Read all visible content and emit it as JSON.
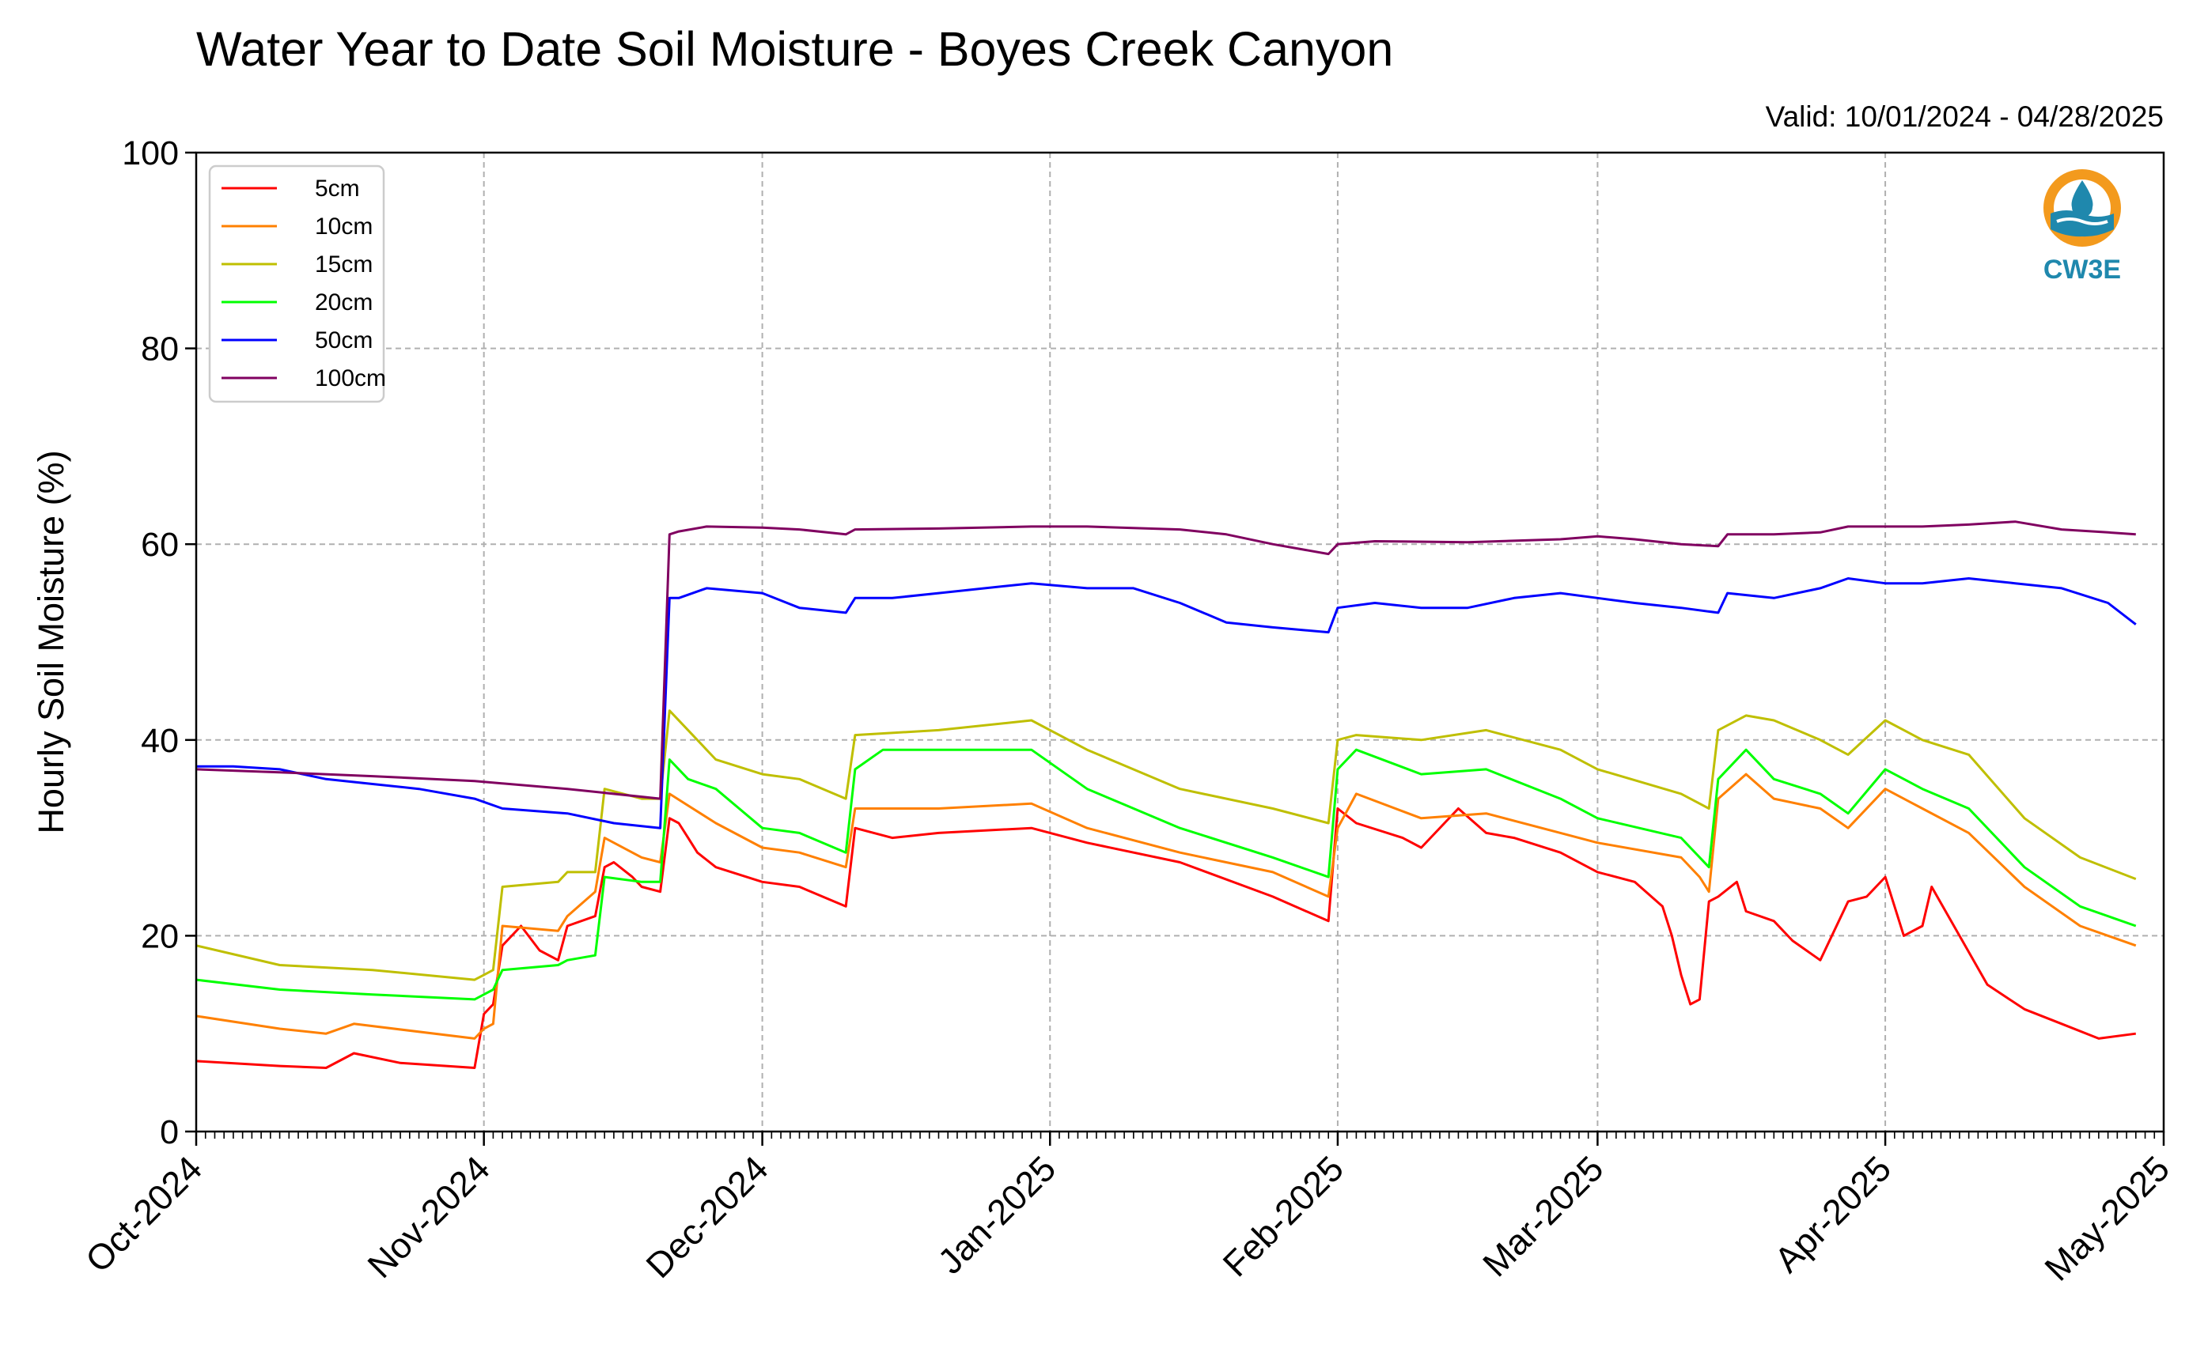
{
  "chart_data": {
    "type": "line",
    "title": "Water Year to Date Soil Moisture - Boyes Creek Canyon",
    "subtitle": "Valid: 10/01/2024 - 04/28/2025",
    "xlabel": "",
    "ylabel": "Hourly Soil Moisture (%)",
    "ylim": [
      0,
      100
    ],
    "yticks": [
      0,
      20,
      40,
      60,
      80,
      100
    ],
    "xlim": [
      "2024-10-01",
      "2025-05-01"
    ],
    "xticks": [
      {
        "date": "2024-10-01",
        "label": "Oct-2024"
      },
      {
        "date": "2024-11-01",
        "label": "Nov-2024"
      },
      {
        "date": "2024-12-01",
        "label": "Dec-2024"
      },
      {
        "date": "2025-01-01",
        "label": "Jan-2025"
      },
      {
        "date": "2025-02-01",
        "label": "Feb-2025"
      },
      {
        "date": "2025-03-01",
        "label": "Mar-2025"
      },
      {
        "date": "2025-04-01",
        "label": "Apr-2025"
      },
      {
        "date": "2025-05-01",
        "label": "May-2025"
      }
    ],
    "grid": true,
    "legend_position": "top-left",
    "logo_text": "CW3E",
    "series": [
      {
        "name": "5cm",
        "color": "#ff0000",
        "x": [
          "2024-10-01",
          "2024-10-10",
          "2024-10-15",
          "2024-10-18",
          "2024-10-23",
          "2024-10-31",
          "2024-11-01",
          "2024-11-02",
          "2024-11-03",
          "2024-11-05",
          "2024-11-07",
          "2024-11-09",
          "2024-11-10",
          "2024-11-13",
          "2024-11-14",
          "2024-11-15",
          "2024-11-17",
          "2024-11-18",
          "2024-11-20",
          "2024-11-21",
          "2024-11-22",
          "2024-11-23",
          "2024-11-24",
          "2024-11-26",
          "2024-12-01",
          "2024-12-05",
          "2024-12-10",
          "2024-12-11",
          "2024-12-15",
          "2024-12-20",
          "2024-12-30",
          "2025-01-05",
          "2025-01-15",
          "2025-01-25",
          "2025-01-31",
          "2025-02-01",
          "2025-02-03",
          "2025-02-08",
          "2025-02-10",
          "2025-02-14",
          "2025-02-17",
          "2025-02-20",
          "2025-02-25",
          "2025-03-01",
          "2025-03-05",
          "2025-03-08",
          "2025-03-09",
          "2025-03-10",
          "2025-03-11",
          "2025-03-12",
          "2025-03-13",
          "2025-03-14",
          "2025-03-16",
          "2025-03-17",
          "2025-03-20",
          "2025-03-22",
          "2025-03-25",
          "2025-03-28",
          "2025-03-30",
          "2025-04-01",
          "2025-04-03",
          "2025-04-05",
          "2025-04-06",
          "2025-04-09",
          "2025-04-12",
          "2025-04-16",
          "2025-04-20",
          "2025-04-24",
          "2025-04-28"
        ],
        "values": [
          7.2,
          6.7,
          6.5,
          8.0,
          7.0,
          6.5,
          12.0,
          13.0,
          19.0,
          21.0,
          18.5,
          17.5,
          21.0,
          22.0,
          27.0,
          27.5,
          26.0,
          25.0,
          24.5,
          32.0,
          31.5,
          30.0,
          28.5,
          27.0,
          25.5,
          25.0,
          23.0,
          31.0,
          30.0,
          30.5,
          31.0,
          29.5,
          27.5,
          24.0,
          21.5,
          33.0,
          31.5,
          30.0,
          29.0,
          33.0,
          30.5,
          30.0,
          28.5,
          26.5,
          25.5,
          23.0,
          20.0,
          16.0,
          13.0,
          13.5,
          23.5,
          24.0,
          25.5,
          22.5,
          21.5,
          19.5,
          17.5,
          23.5,
          24.0,
          26.0,
          20.0,
          21.0,
          25.0,
          20.0,
          15.0,
          12.5,
          11.0,
          9.5,
          10.0
        ]
      },
      {
        "name": "10cm",
        "color": "#ff8000",
        "x": [
          "2024-10-01",
          "2024-10-10",
          "2024-10-15",
          "2024-10-18",
          "2024-10-31",
          "2024-11-01",
          "2024-11-02",
          "2024-11-03",
          "2024-11-09",
          "2024-11-10",
          "2024-11-13",
          "2024-11-14",
          "2024-11-18",
          "2024-11-20",
          "2024-11-21",
          "2024-11-26",
          "2024-12-01",
          "2024-12-05",
          "2024-12-10",
          "2024-12-11",
          "2024-12-20",
          "2024-12-30",
          "2025-01-05",
          "2025-01-15",
          "2025-01-25",
          "2025-01-31",
          "2025-02-01",
          "2025-02-03",
          "2025-02-10",
          "2025-02-17",
          "2025-02-25",
          "2025-03-01",
          "2025-03-10",
          "2025-03-12",
          "2025-03-13",
          "2025-03-14",
          "2025-03-17",
          "2025-03-20",
          "2025-03-25",
          "2025-03-28",
          "2025-04-01",
          "2025-04-05",
          "2025-04-10",
          "2025-04-16",
          "2025-04-22",
          "2025-04-28"
        ],
        "values": [
          11.8,
          10.5,
          10.0,
          11.0,
          9.5,
          10.5,
          11.0,
          21.0,
          20.5,
          22.0,
          24.5,
          30.0,
          28.0,
          27.5,
          34.5,
          31.5,
          29.0,
          28.5,
          27.0,
          33.0,
          33.0,
          33.5,
          31.0,
          28.5,
          26.5,
          24.0,
          31.0,
          34.5,
          32.0,
          32.5,
          30.5,
          29.5,
          28.0,
          26.0,
          24.5,
          34.0,
          36.5,
          34.0,
          33.0,
          31.0,
          35.0,
          33.0,
          30.5,
          25.0,
          21.0,
          19.0
        ]
      },
      {
        "name": "15cm",
        "color": "#bfbf00",
        "x": [
          "2024-10-01",
          "2024-10-10",
          "2024-10-20",
          "2024-10-31",
          "2024-11-01",
          "2024-11-02",
          "2024-11-03",
          "2024-11-09",
          "2024-11-10",
          "2024-11-13",
          "2024-11-14",
          "2024-11-18",
          "2024-11-20",
          "2024-11-21",
          "2024-11-26",
          "2024-12-01",
          "2024-12-05",
          "2024-12-10",
          "2024-12-11",
          "2024-12-20",
          "2024-12-30",
          "2025-01-05",
          "2025-01-15",
          "2025-01-25",
          "2025-01-31",
          "2025-02-01",
          "2025-02-03",
          "2025-02-10",
          "2025-02-17",
          "2025-02-25",
          "2025-03-01",
          "2025-03-10",
          "2025-03-13",
          "2025-03-14",
          "2025-03-17",
          "2025-03-20",
          "2025-03-25",
          "2025-03-28",
          "2025-04-01",
          "2025-04-05",
          "2025-04-10",
          "2025-04-16",
          "2025-04-22",
          "2025-04-28"
        ],
        "values": [
          19.0,
          17.0,
          16.5,
          15.5,
          16.0,
          16.5,
          25.0,
          25.5,
          26.5,
          26.5,
          35.0,
          34.0,
          34.0,
          43.0,
          38.0,
          36.5,
          36.0,
          34.0,
          40.5,
          41.0,
          42.0,
          39.0,
          35.0,
          33.0,
          31.5,
          40.0,
          40.5,
          40.0,
          41.0,
          39.0,
          37.0,
          34.5,
          33.0,
          41.0,
          42.5,
          42.0,
          40.0,
          38.5,
          42.0,
          40.0,
          38.5,
          32.0,
          28.0,
          25.8
        ]
      },
      {
        "name": "20cm",
        "color": "#00ff00",
        "x": [
          "2024-10-01",
          "2024-10-10",
          "2024-10-20",
          "2024-10-31",
          "2024-11-01",
          "2024-11-02",
          "2024-11-03",
          "2024-11-09",
          "2024-11-10",
          "2024-11-13",
          "2024-11-14",
          "2024-11-18",
          "2024-11-20",
          "2024-11-21",
          "2024-11-23",
          "2024-11-26",
          "2024-12-01",
          "2024-12-05",
          "2024-12-10",
          "2024-12-11",
          "2024-12-14",
          "2024-12-20",
          "2024-12-30",
          "2025-01-05",
          "2025-01-15",
          "2025-01-25",
          "2025-01-31",
          "2025-02-01",
          "2025-02-03",
          "2025-02-10",
          "2025-02-17",
          "2025-02-25",
          "2025-03-01",
          "2025-03-10",
          "2025-03-13",
          "2025-03-14",
          "2025-03-17",
          "2025-03-20",
          "2025-03-25",
          "2025-03-28",
          "2025-04-01",
          "2025-04-05",
          "2025-04-10",
          "2025-04-16",
          "2025-04-22",
          "2025-04-28"
        ],
        "values": [
          15.5,
          14.5,
          14.0,
          13.5,
          14.0,
          14.5,
          16.5,
          17.0,
          17.5,
          18.0,
          26.0,
          25.5,
          25.5,
          38.0,
          36.0,
          35.0,
          31.0,
          30.5,
          28.5,
          37.0,
          39.0,
          39.0,
          39.0,
          35.0,
          31.0,
          28.0,
          26.0,
          37.0,
          39.0,
          36.5,
          37.0,
          34.0,
          32.0,
          30.0,
          27.0,
          36.0,
          39.0,
          36.0,
          34.5,
          32.5,
          37.0,
          35.0,
          33.0,
          27.0,
          23.0,
          21.0
        ]
      },
      {
        "name": "50cm",
        "color": "#0000ff",
        "x": [
          "2024-10-01",
          "2024-10-05",
          "2024-10-10",
          "2024-10-15",
          "2024-10-20",
          "2024-10-25",
          "2024-10-31",
          "2024-11-03",
          "2024-11-10",
          "2024-11-15",
          "2024-11-20",
          "2024-11-21",
          "2024-11-22",
          "2024-11-25",
          "2024-12-01",
          "2024-12-05",
          "2024-12-10",
          "2024-12-11",
          "2024-12-15",
          "2024-12-20",
          "2024-12-30",
          "2025-01-05",
          "2025-01-10",
          "2025-01-15",
          "2025-01-20",
          "2025-01-25",
          "2025-01-31",
          "2025-02-01",
          "2025-02-05",
          "2025-02-10",
          "2025-02-15",
          "2025-02-20",
          "2025-02-25",
          "2025-03-01",
          "2025-03-05",
          "2025-03-10",
          "2025-03-14",
          "2025-03-15",
          "2025-03-20",
          "2025-03-25",
          "2025-03-28",
          "2025-04-01",
          "2025-04-05",
          "2025-04-10",
          "2025-04-15",
          "2025-04-20",
          "2025-04-25",
          "2025-04-28"
        ],
        "values": [
          37.3,
          37.3,
          37.0,
          36.0,
          35.5,
          35.0,
          34.0,
          33.0,
          32.5,
          31.5,
          31.0,
          54.5,
          54.5,
          55.5,
          55.0,
          53.5,
          53.0,
          54.5,
          54.5,
          55.0,
          56.0,
          55.5,
          55.5,
          54.0,
          52.0,
          51.5,
          51.0,
          53.5,
          54.0,
          53.5,
          53.5,
          54.5,
          55.0,
          54.5,
          54.0,
          53.5,
          53.0,
          55.0,
          54.5,
          55.5,
          56.5,
          56.0,
          56.0,
          56.5,
          56.0,
          55.5,
          54.0,
          51.8
        ]
      },
      {
        "name": "100cm",
        "color": "#800060",
        "x": [
          "2024-10-01",
          "2024-10-10",
          "2024-10-20",
          "2024-10-31",
          "2024-11-10",
          "2024-11-20",
          "2024-11-21",
          "2024-11-22",
          "2024-11-25",
          "2024-12-01",
          "2024-12-05",
          "2024-12-10",
          "2024-12-11",
          "2024-12-20",
          "2024-12-30",
          "2025-01-05",
          "2025-01-15",
          "2025-01-20",
          "2025-01-25",
          "2025-01-31",
          "2025-02-01",
          "2025-02-05",
          "2025-02-15",
          "2025-02-25",
          "2025-03-01",
          "2025-03-05",
          "2025-03-10",
          "2025-03-14",
          "2025-03-15",
          "2025-03-20",
          "2025-03-25",
          "2025-03-28",
          "2025-04-01",
          "2025-04-05",
          "2025-04-10",
          "2025-04-15",
          "2025-04-20",
          "2025-04-25",
          "2025-04-28"
        ],
        "values": [
          37.0,
          36.7,
          36.3,
          35.8,
          35.0,
          34.0,
          61.0,
          61.3,
          61.8,
          61.7,
          61.5,
          61.0,
          61.5,
          61.6,
          61.8,
          61.8,
          61.5,
          61.0,
          60.0,
          59.0,
          60.0,
          60.3,
          60.2,
          60.5,
          60.8,
          60.5,
          60.0,
          59.8,
          61.0,
          61.0,
          61.2,
          61.8,
          61.8,
          61.8,
          62.0,
          62.3,
          61.5,
          61.2,
          61.0
        ]
      }
    ]
  }
}
